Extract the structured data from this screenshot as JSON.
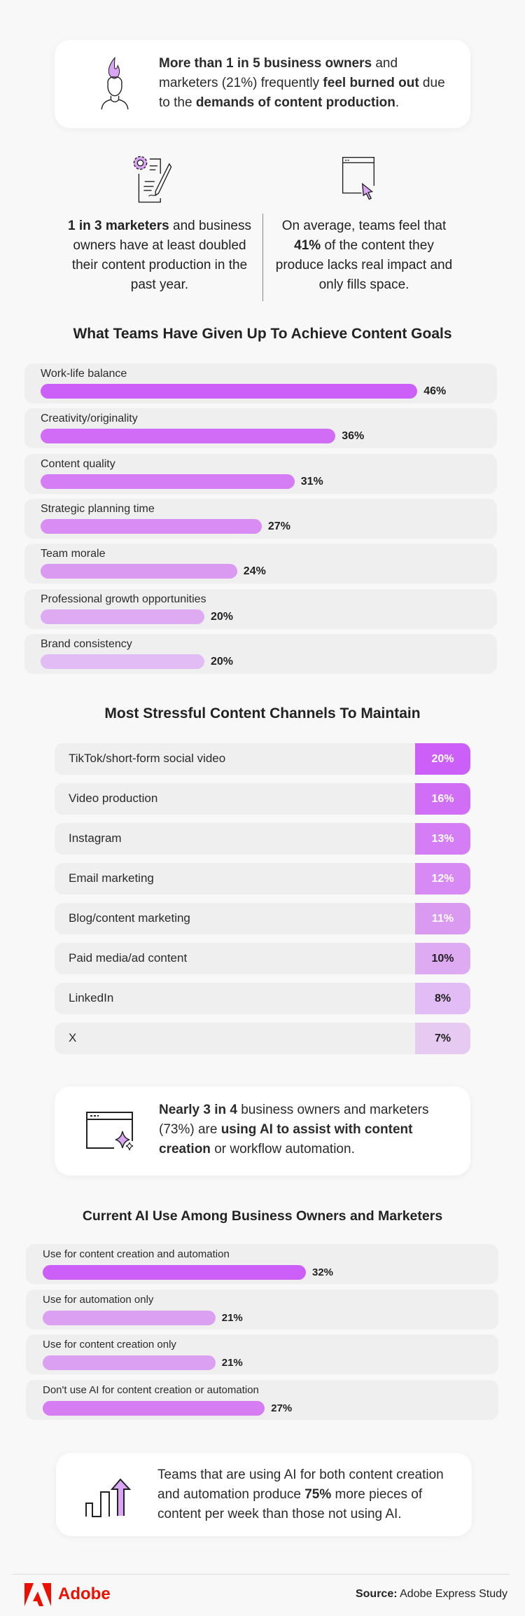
{
  "card1": {
    "b1": "More than 1 in 5 business owners",
    "t1": " and marketers (21%) frequently ",
    "b2": "feel burned out",
    "t2": " due to the ",
    "b3": "demands of content production",
    "t3": "."
  },
  "stat_left": {
    "b": "1 in 3 marketers",
    "t": " and business owners have at least doubled their content production in the past year."
  },
  "stat_right": {
    "t1": "On average, teams feel that ",
    "b": "41%",
    "t2": " of the content they produce lacks real impact and only fills space."
  },
  "card2": {
    "b1": "Nearly 3 in 4",
    "t1": " business owners and marketers (73%) are ",
    "b2": "using AI to assist with content creation",
    "t2": " or workflow automation."
  },
  "card3": {
    "t1": "Teams that are using AI for both content creation and automation produce ",
    "b": "75%",
    "t2": " more pieces of content per week than those not using AI."
  },
  "footer": {
    "brand": "Adobe",
    "source_label": "Source:",
    "source": " Adobe Express Study"
  },
  "colors": {
    "accent": "#cc5ff8",
    "light": "#e4c8f4",
    "row_bg": "#efefef",
    "logo": "#eb1000"
  },
  "chart_data": [
    {
      "type": "bar",
      "title": "What Teams Have Given Up To Achieve Content Goals",
      "categories": [
        "Work-life balance",
        "Creativity/originality",
        "Content quality",
        "Strategic planning time",
        "Team morale",
        "Professional growth opportunities",
        "Brand consistency"
      ],
      "values": [
        46,
        36,
        31,
        27,
        24,
        20,
        20
      ],
      "labels": [
        "46%",
        "36%",
        "31%",
        "27%",
        "24%",
        "20%",
        "20%"
      ],
      "bar_colors": [
        "#cc5ff8",
        "#d06cf6",
        "#d47df4",
        "#d88cf4",
        "#da9af2",
        "#deaaf2",
        "#e2bcf4"
      ]
    },
    {
      "type": "table",
      "title": "Most Stressful Content Channels To Maintain",
      "categories": [
        "TikTok/short-form social video",
        "Video production",
        "Instagram",
        "Email marketing",
        "Blog/content marketing",
        "Paid media/ad content",
        "LinkedIn",
        "X"
      ],
      "values": [
        20,
        16,
        13,
        12,
        11,
        10,
        8,
        7
      ],
      "labels": [
        "20%",
        "16%",
        "13%",
        "12%",
        "11%",
        "10%",
        "8%",
        "7%"
      ],
      "cell_colors": [
        "#cc5ff8",
        "#d06ef6",
        "#d47df4",
        "#d88af4",
        "#da9af2",
        "#deaaf2",
        "#e2bcf4",
        "#e6caf2"
      ],
      "label_colors": [
        "#ffffff",
        "#ffffff",
        "#ffffff",
        "#ffffff",
        "#ffffff",
        "#222222",
        "#222222",
        "#222222"
      ]
    },
    {
      "type": "bar",
      "title": "Current AI Use Among Business Owners and Marketers",
      "categories": [
        "Use for content creation and automation",
        "Use for automation only",
        "Use for content creation only",
        "Don't use AI for content creation or automation"
      ],
      "values": [
        32,
        21,
        21,
        27
      ],
      "labels": [
        "32%",
        "21%",
        "21%",
        "27%"
      ],
      "bar_colors": [
        "#cc5ff8",
        "#dba0f2",
        "#dba0f2",
        "#d67df4"
      ]
    }
  ]
}
